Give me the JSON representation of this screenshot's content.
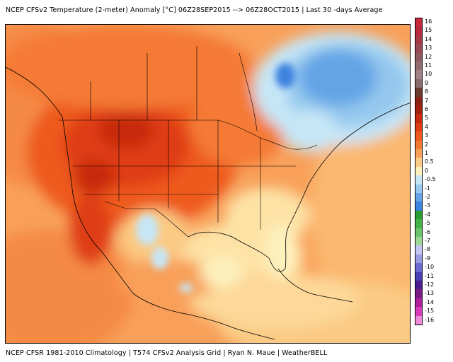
{
  "header": {
    "title": "NCEP CFSv2 Temperature (2-meter) Anomaly  [°C] 06Z28SEP2015 --> 06Z28OCT2015 | Last 30 -days Average"
  },
  "footer": {
    "credit": "NCEP CFSR 1981-2010 Climatology | T574 CFSv2 Analysis Grid | Ryan N. Maue | WeatherBELL"
  },
  "legend": {
    "items": [
      {
        "label": "16",
        "color": "#c92a3a"
      },
      {
        "label": "15",
        "color": "#b82a3b"
      },
      {
        "label": "14",
        "color": "#a83a48"
      },
      {
        "label": "13",
        "color": "#9a4a55"
      },
      {
        "label": "12",
        "color": "#8e5a62"
      },
      {
        "label": "11",
        "color": "#906c70"
      },
      {
        "label": "10",
        "color": "#9e8286"
      },
      {
        "label": "9",
        "color": "#8a6e6e"
      },
      {
        "label": "8",
        "color": "#6a3a2e"
      },
      {
        "label": "7",
        "color": "#8a2216"
      },
      {
        "label": "6",
        "color": "#a4200e"
      },
      {
        "label": "5",
        "color": "#c82a10"
      },
      {
        "label": "4",
        "color": "#df3c14"
      },
      {
        "label": "3",
        "color": "#ee5a1e"
      },
      {
        "label": "2",
        "color": "#f47a34"
      },
      {
        "label": "1",
        "color": "#f8a05a"
      },
      {
        "label": "0.5",
        "color": "#fbca84"
      },
      {
        "label": "0",
        "color": "#fdf0bc"
      },
      {
        "label": "-0.5",
        "color": "#c6e6f6"
      },
      {
        "label": "-1",
        "color": "#94c8ee"
      },
      {
        "label": "-2",
        "color": "#64a4e6"
      },
      {
        "label": "-3",
        "color": "#3c82e0"
      },
      {
        "label": "-4",
        "color": "#28a030"
      },
      {
        "label": "-5",
        "color": "#44b44a"
      },
      {
        "label": "-6",
        "color": "#6cc46c"
      },
      {
        "label": "-7",
        "color": "#9ad894"
      },
      {
        "label": "-8",
        "color": "#c4c4f0"
      },
      {
        "label": "-9",
        "color": "#9a9ae2"
      },
      {
        "label": "-10",
        "color": "#6a6ad2"
      },
      {
        "label": "-11",
        "color": "#4a3eb6"
      },
      {
        "label": "-12",
        "color": "#4a1e8c"
      },
      {
        "label": "-13",
        "color": "#7a1a84"
      },
      {
        "label": "-14",
        "color": "#b01e9c"
      },
      {
        "label": "-15",
        "color": "#d83cb8"
      },
      {
        "label": "-16",
        "color": "#ec8ad8"
      }
    ]
  }
}
